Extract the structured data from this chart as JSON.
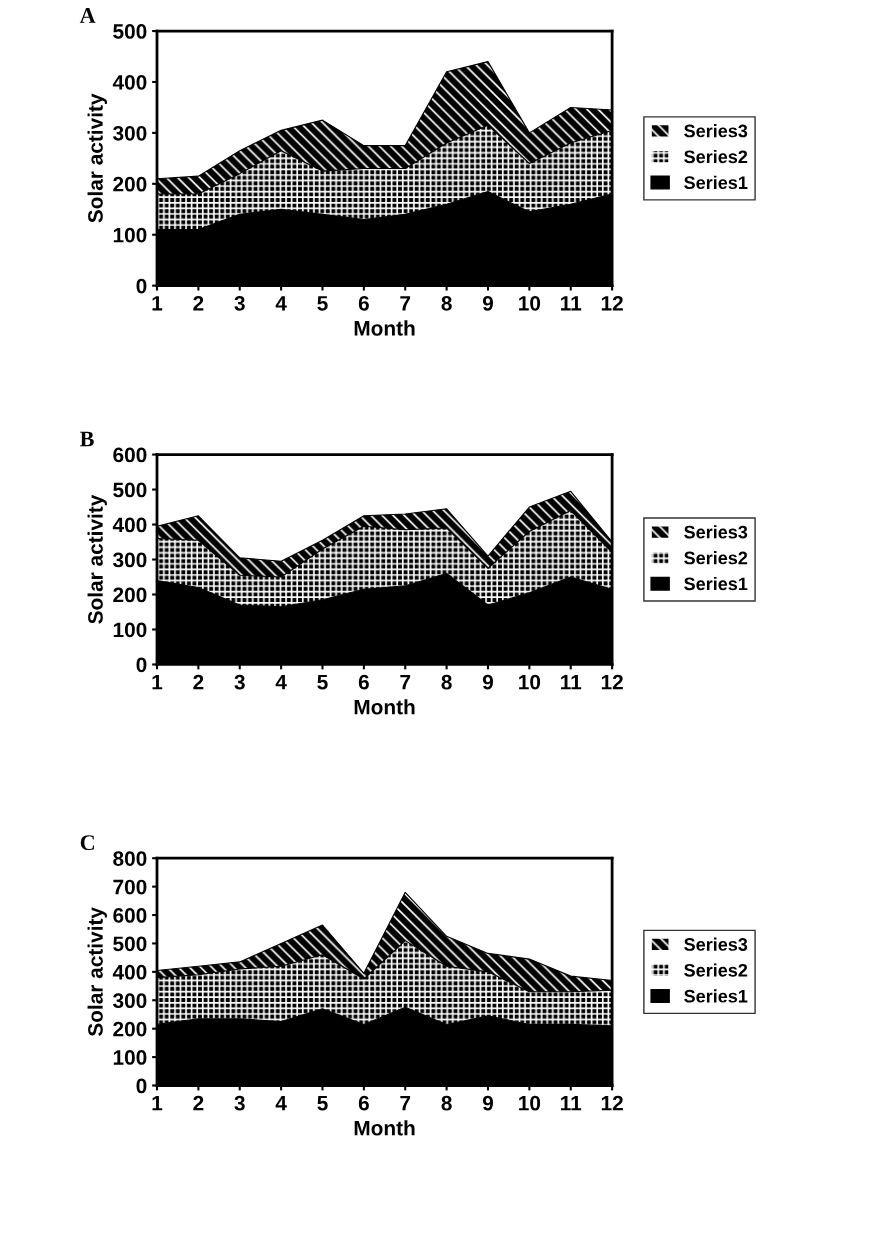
{
  "chart_data": [
    {
      "type": "area",
      "stacked": true,
      "title": "A",
      "xlabel": "Month",
      "ylabel": "Solar activity",
      "x": [
        1,
        2,
        3,
        4,
        5,
        6,
        7,
        8,
        9,
        10,
        11,
        12
      ],
      "xlim": [
        1,
        12
      ],
      "xticks": [
        1,
        2,
        3,
        4,
        5,
        6,
        7,
        8,
        9,
        10,
        11,
        12
      ],
      "ylim": [
        0,
        500
      ],
      "yticks": [
        0,
        100,
        200,
        300,
        400,
        500
      ],
      "legend": "right",
      "series": [
        {
          "name": "Series1",
          "color": "#000000",
          "values": [
            110,
            110,
            140,
            150,
            140,
            130,
            140,
            160,
            185,
            145,
            160,
            180
          ]
        },
        {
          "name": "Series2",
          "color": "#000000",
          "values": [
            70,
            70,
            80,
            115,
            85,
            100,
            90,
            120,
            130,
            95,
            120,
            125
          ]
        },
        {
          "name": "Series3",
          "color": "#000000",
          "values": [
            30,
            35,
            45,
            40,
            100,
            45,
            45,
            140,
            125,
            60,
            70,
            40
          ]
        }
      ]
    },
    {
      "type": "area",
      "stacked": true,
      "title": "B",
      "xlabel": "Month",
      "ylabel": "Solar activity",
      "x": [
        1,
        2,
        3,
        4,
        5,
        6,
        7,
        8,
        9,
        10,
        11,
        12
      ],
      "xlim": [
        1,
        12
      ],
      "xticks": [
        1,
        2,
        3,
        4,
        5,
        6,
        7,
        8,
        9,
        10,
        11,
        12
      ],
      "ylim": [
        0,
        600
      ],
      "yticks": [
        0,
        100,
        200,
        300,
        400,
        500,
        600
      ],
      "legend": "right",
      "series": [
        {
          "name": "Series1",
          "color": "#000000",
          "values": [
            240,
            220,
            170,
            165,
            185,
            215,
            225,
            260,
            170,
            205,
            250,
            215
          ]
        },
        {
          "name": "Series2",
          "color": "#000000",
          "values": [
            120,
            135,
            85,
            85,
            145,
            180,
            160,
            130,
            105,
            175,
            190,
            105
          ]
        },
        {
          "name": "Series3",
          "color": "#000000",
          "values": [
            35,
            70,
            50,
            45,
            25,
            30,
            45,
            55,
            35,
            70,
            55,
            30
          ]
        }
      ]
    },
    {
      "type": "area",
      "stacked": true,
      "title": "C",
      "xlabel": "Month",
      "ylabel": "Solar activity",
      "x": [
        1,
        2,
        3,
        4,
        5,
        6,
        7,
        8,
        9,
        10,
        11,
        12
      ],
      "xlim": [
        1,
        12
      ],
      "xticks": [
        1,
        2,
        3,
        4,
        5,
        6,
        7,
        8,
        9,
        10,
        11,
        12
      ],
      "ylim": [
        0,
        800
      ],
      "yticks": [
        0,
        100,
        200,
        300,
        400,
        500,
        600,
        700,
        800
      ],
      "legend": "right",
      "series": [
        {
          "name": "Series1",
          "color": "#000000",
          "values": [
            215,
            235,
            235,
            225,
            270,
            215,
            275,
            215,
            245,
            215,
            215,
            210
          ]
        },
        {
          "name": "Series2",
          "color": "#000000",
          "values": [
            165,
            155,
            175,
            195,
            190,
            160,
            235,
            205,
            155,
            115,
            115,
            125
          ]
        },
        {
          "name": "Series3",
          "color": "#000000",
          "values": [
            25,
            30,
            25,
            80,
            105,
            20,
            170,
            105,
            65,
            115,
            55,
            35
          ]
        }
      ]
    }
  ]
}
